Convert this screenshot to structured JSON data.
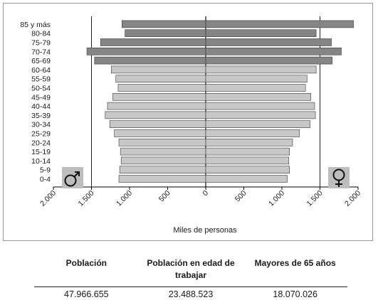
{
  "chart_data": {
    "type": "bar",
    "orientation": "horizontal-population-pyramid",
    "categories": [
      "85 y más",
      "80-84",
      "75-79",
      "70-74",
      "65-69",
      "60-64",
      "55-59",
      "50-54",
      "45-49",
      "40-44",
      "35-39",
      "30-34",
      "25-29",
      "20-24",
      "15-19",
      "10-14",
      "5-9",
      "0-4"
    ],
    "series": [
      {
        "values": [
          1100,
          1060,
          1380,
          1560,
          1460,
          1240,
          1180,
          1150,
          1220,
          1290,
          1320,
          1260,
          1200,
          1140,
          1120,
          1110,
          1130,
          1140
        ],
        "color": "#858585"
      },
      {
        "values": [
          1940,
          1450,
          1650,
          1780,
          1660,
          1450,
          1330,
          1310,
          1380,
          1430,
          1440,
          1370,
          1230,
          1140,
          1100,
          1090,
          1100,
          1070
        ],
        "color": "#858585"
      }
    ],
    "xlabel": "Miles de personas",
    "xlim": [
      -2000,
      2000
    ],
    "x_tick_labels": [
      "2.000",
      "1.500",
      "1.000",
      "500",
      "0",
      "500",
      "1.000",
      "1.500",
      "2.000"
    ],
    "gridlines_at": [
      -1500,
      0,
      1500
    ],
    "bar_colors": {
      "age_65_plus": "#858585",
      "age_under_65": "#c7c7c7",
      "outline": "#3a3a3a"
    },
    "legend": [
      {
        "icon": "male-symbol-icon",
        "placement": "bottom-left"
      },
      {
        "icon": "female-symbol-icon",
        "placement": "bottom-right"
      }
    ]
  },
  "stats": {
    "headers": [
      "Población",
      "Población en edad de trabajar",
      "Mayores de 65 años"
    ],
    "values": [
      "47.966.655",
      "23.488.523",
      "18.070.026"
    ]
  }
}
